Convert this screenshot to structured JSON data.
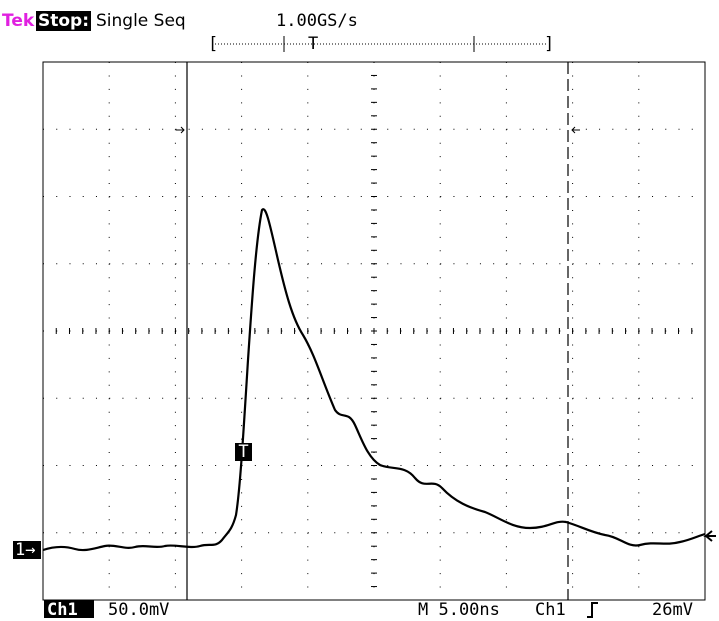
{
  "header": {
    "brand": "Tek",
    "status": "Stop:",
    "mode": "Single Seq",
    "sample_rate": "1.00GS/s"
  },
  "markers": {
    "trigger_position": "T",
    "trigger_point": "T",
    "channel_ground": "1→"
  },
  "footer": {
    "channel": "Ch1",
    "scale": "50.0mV",
    "timebase": "M 5.00ns",
    "trigger_source": "Ch1",
    "trigger_level": "26mV"
  }
}
